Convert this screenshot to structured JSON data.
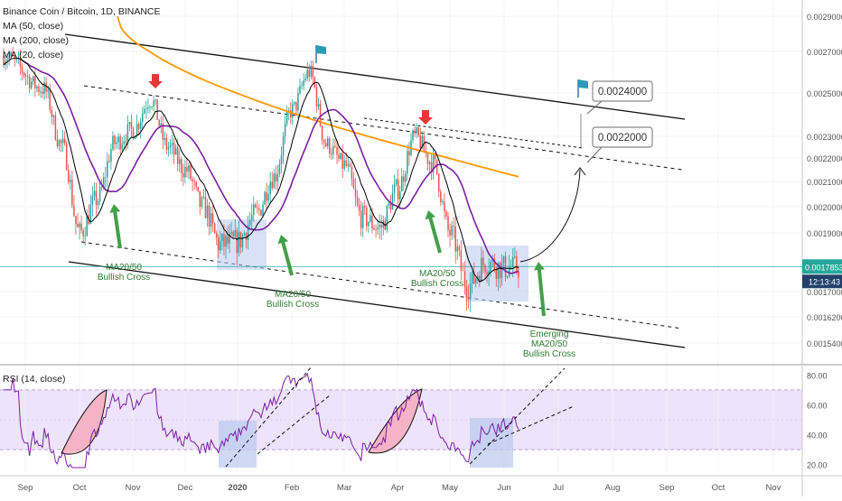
{
  "header": {
    "symbol": "Binance Coin / Bitcoin, 1D, BINANCE",
    "ma50": "MA (50, close)",
    "ma200": "MA (200, close)",
    "ma20": "MA (20, close)",
    "rsi": "RSI (14, close)"
  },
  "colors": {
    "up": "#26a69a",
    "down": "#ef5350",
    "ma20": "#000000",
    "ma50": "#7b1fa2",
    "ma200": "#ff9800",
    "rsi": "#7b1fa2",
    "arrow_green": "#43a047",
    "arrow_red": "#e53935",
    "price_tag": "#26a69a",
    "time_tag": "#22406b",
    "box": "#7e9ee8"
  },
  "chart_data": [
    {
      "type": "candlestick",
      "title": "Binance Coin / Bitcoin, 1D, BINANCE",
      "x_ticks": [
        "Sep",
        "Oct",
        "Nov",
        "Dec",
        "2020",
        "Feb",
        "Mar",
        "Apr",
        "May",
        "Jun",
        "Jul",
        "Aug",
        "Sep",
        "Oct",
        "Nov"
      ],
      "y_ticks": [
        "0.0029000",
        "0.0027000",
        "0.0025000",
        "0.0023000",
        "0.0022000",
        "0.0021000",
        "0.0020000",
        "0.0019000",
        "0.0017000",
        "0.0016200",
        "0.0015400"
      ],
      "current_price": "0.0017853",
      "countdown": "12:13:43",
      "close_path": [
        [
          "Sep",
          0.00268
        ],
        [
          "",
          "0.00252"
        ],
        [
          "",
          "0.00226"
        ],
        [
          "Oct",
          0.0019
        ],
        [
          "",
          0.00203
        ],
        [
          "",
          0.00227
        ],
        [
          "Nov",
          0.00233
        ],
        [
          "",
          0.00247
        ],
        [
          "",
          0.00225
        ],
        [
          "Dec",
          0.00215
        ],
        [
          "",
          0.002
        ],
        [
          "",
          0.00186
        ],
        [
          "2020",
          0.00187
        ],
        [
          "",
          0.00197
        ],
        [
          "",
          0.00212
        ],
        [
          "Feb",
          0.00242
        ],
        [
          "",
          0.0026
        ],
        [
          "",
          0.00226
        ],
        [
          "Mar",
          0.00217
        ],
        [
          "",
          0.00196
        ],
        [
          "",
          0.00192
        ],
        [
          "Apr",
          0.00207
        ],
        [
          "",
          0.0023
        ],
        [
          "",
          0.00218
        ],
        [
          "May",
          0.0019
        ],
        [
          "",
          0.00172
        ],
        [
          "",
          0.0018
        ],
        [
          "Jun",
          0.00178
        ]
      ],
      "series": [
        {
          "name": "MA (50, close)"
        },
        {
          "name": "MA (200, close)"
        },
        {
          "name": "MA (20, close)"
        }
      ],
      "annotations": [
        {
          "text": "MA20/50\nBullish Cross"
        },
        {
          "text": "MA20/50\nBullish Cross"
        },
        {
          "text": "MA20/50\nBullish Cross"
        },
        {
          "text": "Emerging\nMA20/50\nBullish Cross"
        },
        {
          "text": "0.0024000"
        },
        {
          "text": "0.0022000"
        }
      ]
    },
    {
      "type": "line",
      "title": "RSI (14, close)",
      "y_ticks": [
        "80.00",
        "60.00",
        "40.00",
        "20.00"
      ],
      "band": [
        30,
        70
      ],
      "ylim": [
        15,
        85
      ],
      "series": [
        {
          "name": "RSI (14, close)"
        }
      ]
    }
  ],
  "labels": {
    "cross1": "MA20/50\nBullish Cross",
    "cross2": "MA20/50\nBullish Cross",
    "cross3": "MA20/50\nBullish Cross",
    "cross4": "Emerging\nMA20/50\nBullish Cross",
    "target1": "0.0024000",
    "target2": "0.0022000",
    "rsi_value_tag": ""
  }
}
